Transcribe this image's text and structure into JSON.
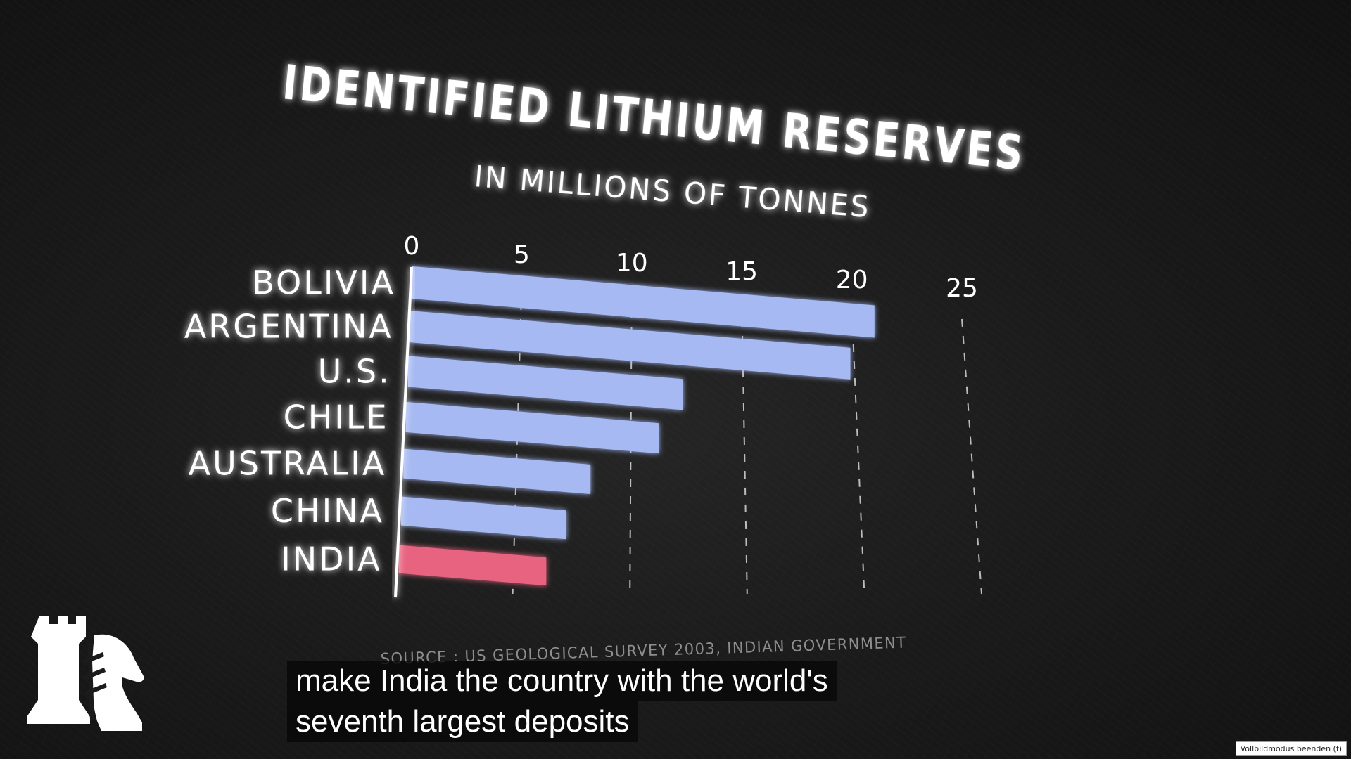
{
  "chart_data": {
    "type": "bar",
    "title": "IDENTIFIED LITHIUM RESERVES",
    "subtitle": "IN MILLIONS OF TONNES",
    "categories": [
      "BOLIVIA",
      "ARGENTINA",
      "U.S.",
      "CHILE",
      "AUSTRALIA",
      "CHINA",
      "INDIA"
    ],
    "values": [
      21,
      20,
      12.5,
      11.5,
      8.5,
      7.5,
      6.7
    ],
    "ticks": [
      "0",
      "5",
      "10",
      "15",
      "20",
      "25"
    ],
    "xlim": [
      0,
      25
    ],
    "grid": "dashed vertical",
    "source": "SOURCE : US GEOLOGICAL SURVEY 2003, INDIAN GOVERNMENT",
    "colors": {
      "default": "#a6b9f2",
      "highlight": "#e8647f"
    },
    "highlight_category": "INDIA"
  },
  "captions": {
    "line1": "make India the country with the world's",
    "line2": "seventh largest deposits"
  },
  "overlay": {
    "exit_fullscreen": "Vollbildmodus beenden (f)"
  },
  "logo": {
    "icon": "rook-knight-icon"
  }
}
